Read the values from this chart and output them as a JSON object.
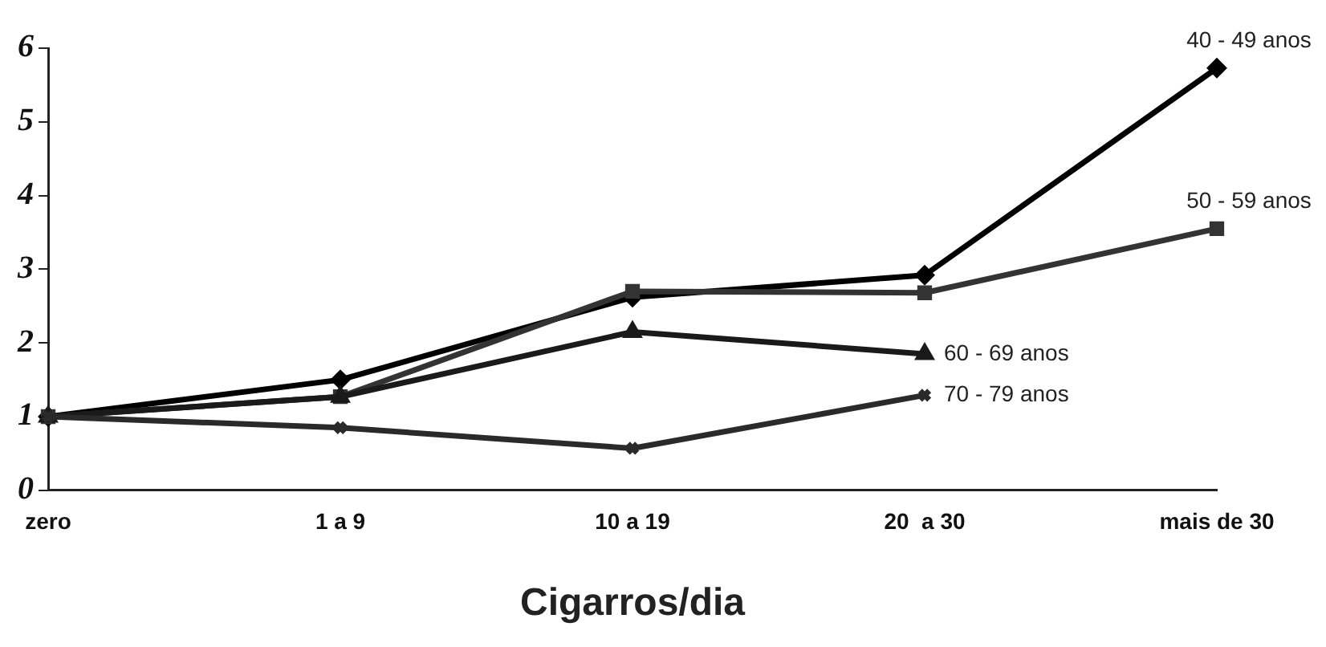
{
  "chart_data": {
    "type": "line",
    "xlabel": "Cigarros/dia",
    "categories": [
      "zero",
      "1 a 9",
      "10 a 19",
      "20  a 30",
      "mais de 30"
    ],
    "series": [
      {
        "name": "40 - 49 anos",
        "color": "#000000",
        "marker": "diamond",
        "values": [
          1,
          1.5,
          2.62,
          2.92,
          5.73
        ]
      },
      {
        "name": "50 - 59 anos",
        "color": "#333333",
        "marker": "square",
        "values": [
          1,
          1.27,
          2.7,
          2.68,
          3.55
        ]
      },
      {
        "name": "60 - 69 anos",
        "color": "#1a1a1a",
        "marker": "triangle",
        "values": [
          1,
          1.27,
          2.15,
          1.85,
          null
        ]
      },
      {
        "name": "70 - 79 anos",
        "color": "#2a2a2a",
        "marker": "cross",
        "values": [
          1,
          0.85,
          0.57,
          1.29,
          null
        ]
      }
    ],
    "ylim": [
      0,
      6
    ],
    "yticks": [
      0,
      1,
      2,
      3,
      4,
      5,
      6
    ],
    "grid": false,
    "legend": false,
    "line_style": "solid"
  }
}
